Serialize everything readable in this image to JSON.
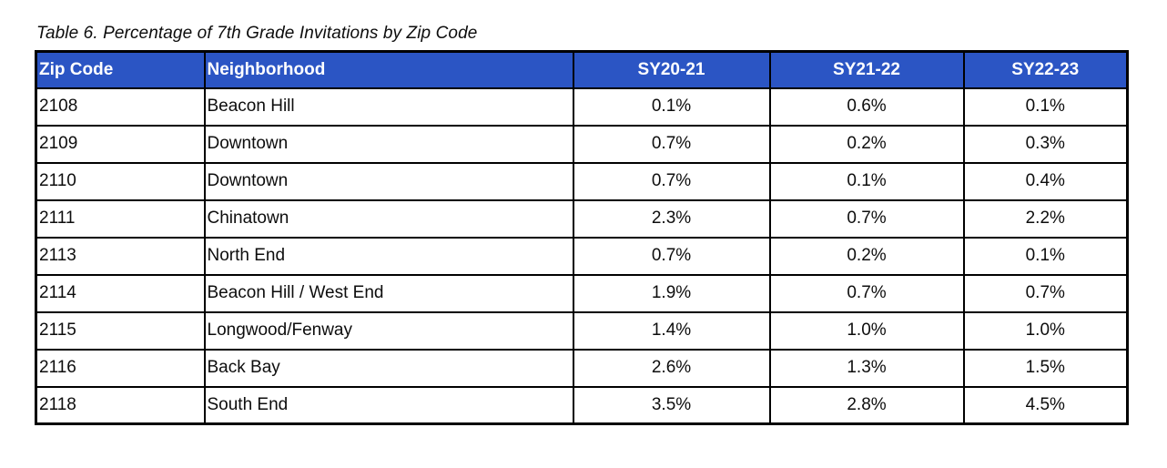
{
  "title": "Table 6. Percentage of 7th Grade Invitations by Zip Code",
  "colors": {
    "header_bg": "#2b55c4",
    "header_text": "#ffffff",
    "border": "#000000"
  },
  "table": {
    "columns": [
      "Zip Code",
      "Neighborhood",
      "SY20-21",
      "SY21-22",
      "SY22-23"
    ],
    "rows": [
      {
        "zip": "2108",
        "neighborhood": "Beacon Hill",
        "values": [
          "0.1%",
          "0.6%",
          "0.1%"
        ]
      },
      {
        "zip": "2109",
        "neighborhood": "Downtown",
        "values": [
          "0.7%",
          "0.2%",
          "0.3%"
        ]
      },
      {
        "zip": "2110",
        "neighborhood": "Downtown",
        "values": [
          "0.7%",
          "0.1%",
          "0.4%"
        ]
      },
      {
        "zip": "2111",
        "neighborhood": "Chinatown",
        "values": [
          "2.3%",
          "0.7%",
          "2.2%"
        ]
      },
      {
        "zip": "2113",
        "neighborhood": "North End",
        "values": [
          "0.7%",
          "0.2%",
          "0.1%"
        ]
      },
      {
        "zip": "2114",
        "neighborhood": "Beacon Hill / West End",
        "values": [
          "1.9%",
          "0.7%",
          "0.7%"
        ]
      },
      {
        "zip": "2115",
        "neighborhood": "Longwood/Fenway",
        "values": [
          "1.4%",
          "1.0%",
          "1.0%"
        ]
      },
      {
        "zip": "2116",
        "neighborhood": "Back Bay",
        "values": [
          "2.6%",
          "1.3%",
          "1.5%"
        ]
      },
      {
        "zip": "2118",
        "neighborhood": "South End",
        "values": [
          "3.5%",
          "2.8%",
          "4.5%"
        ]
      }
    ]
  }
}
